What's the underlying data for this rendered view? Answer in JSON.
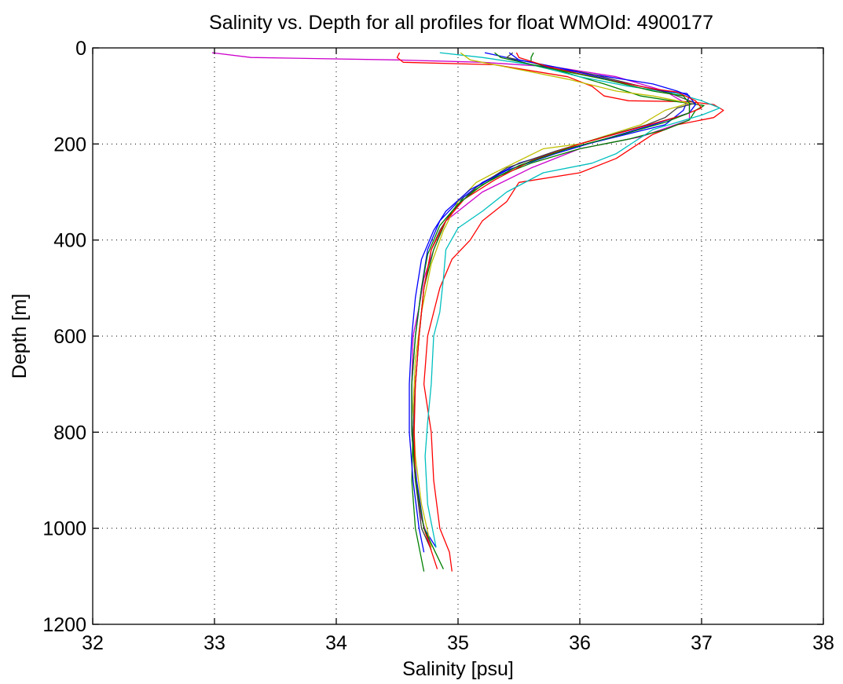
{
  "chart_data": {
    "type": "line",
    "title": "Salinity vs. Depth for all profiles for float WMOId: 4900177",
    "xlabel": "Salinity [psu]",
    "ylabel": "Depth [m]",
    "xlim": [
      32,
      38
    ],
    "ylim": [
      0,
      1200
    ],
    "y_reversed": true,
    "grid": true,
    "x_ticks": [
      "32",
      "33",
      "34",
      "35",
      "36",
      "37",
      "38"
    ],
    "y_ticks": [
      "0",
      "200",
      "400",
      "600",
      "800",
      "1000",
      "1200"
    ],
    "series": [
      {
        "color": "#cc00cc",
        "points": [
          [
            32.98,
            10
          ],
          [
            33.3,
            20
          ],
          [
            34.5,
            25
          ],
          [
            35.2,
            30
          ],
          [
            35.8,
            40
          ],
          [
            36.3,
            60
          ],
          [
            36.7,
            90
          ],
          [
            36.9,
            120
          ],
          [
            36.9,
            150
          ],
          [
            36.5,
            185
          ],
          [
            36.0,
            210
          ],
          [
            35.6,
            250
          ],
          [
            35.2,
            300
          ],
          [
            34.9,
            360
          ],
          [
            34.8,
            420
          ],
          [
            34.72,
            480
          ],
          [
            34.68,
            540
          ],
          [
            34.63,
            600
          ],
          [
            34.62,
            700
          ],
          [
            34.62,
            800
          ],
          [
            34.65,
            900
          ],
          [
            34.7,
            980
          ],
          [
            34.78,
            1040
          ]
        ]
      },
      {
        "color": "#ff0000",
        "points": [
          [
            34.52,
            10
          ],
          [
            34.5,
            20
          ],
          [
            34.55,
            30
          ],
          [
            35.3,
            35
          ],
          [
            35.9,
            60
          ],
          [
            36.1,
            80
          ],
          [
            36.2,
            100
          ],
          [
            36.4,
            110
          ],
          [
            36.9,
            112
          ],
          [
            37.1,
            118
          ],
          [
            37.18,
            130
          ],
          [
            37.1,
            145
          ],
          [
            36.8,
            160
          ],
          [
            36.6,
            180
          ],
          [
            36.3,
            230
          ],
          [
            36.0,
            260
          ],
          [
            35.5,
            280
          ],
          [
            35.4,
            320
          ],
          [
            35.2,
            360
          ],
          [
            35.1,
            400
          ],
          [
            34.95,
            440
          ],
          [
            34.85,
            500
          ],
          [
            34.75,
            600
          ],
          [
            34.72,
            700
          ],
          [
            34.78,
            800
          ],
          [
            34.8,
            900
          ],
          [
            34.85,
            1000
          ],
          [
            34.93,
            1050
          ],
          [
            34.95,
            1090
          ]
        ]
      },
      {
        "color": "#008000",
        "points": [
          [
            35.62,
            10
          ],
          [
            35.6,
            20
          ],
          [
            35.6,
            30
          ],
          [
            35.8,
            45
          ],
          [
            36.0,
            60
          ],
          [
            36.2,
            75
          ],
          [
            36.5,
            100
          ],
          [
            36.8,
            112
          ],
          [
            37.02,
            120
          ],
          [
            36.95,
            130
          ],
          [
            36.9,
            150
          ],
          [
            36.7,
            170
          ],
          [
            36.4,
            190
          ],
          [
            36.0,
            210
          ],
          [
            35.6,
            240
          ],
          [
            35.3,
            270
          ],
          [
            35.05,
            310
          ],
          [
            34.9,
            360
          ],
          [
            34.8,
            420
          ],
          [
            34.72,
            500
          ],
          [
            34.68,
            600
          ],
          [
            34.65,
            700
          ],
          [
            34.63,
            800
          ],
          [
            34.62,
            900
          ],
          [
            34.65,
            1000
          ],
          [
            34.72,
            1090
          ]
        ]
      },
      {
        "color": "#0000ff",
        "points": [
          [
            35.22,
            10
          ],
          [
            35.4,
            20
          ],
          [
            35.6,
            35
          ],
          [
            36.1,
            55
          ],
          [
            36.6,
            75
          ],
          [
            36.8,
            90
          ],
          [
            36.9,
            100
          ],
          [
            36.85,
            130
          ],
          [
            36.7,
            160
          ],
          [
            36.3,
            185
          ],
          [
            35.9,
            210
          ],
          [
            35.5,
            240
          ],
          [
            35.2,
            280
          ],
          [
            35.0,
            320
          ],
          [
            34.85,
            360
          ],
          [
            34.75,
            420
          ],
          [
            34.7,
            500
          ],
          [
            34.65,
            600
          ],
          [
            34.62,
            700
          ],
          [
            34.62,
            800
          ],
          [
            34.66,
            900
          ],
          [
            34.72,
            1000
          ],
          [
            34.82,
            1040
          ]
        ]
      },
      {
        "color": "#00bfbf",
        "points": [
          [
            34.85,
            10
          ],
          [
            35.2,
            20
          ],
          [
            35.6,
            35
          ],
          [
            36.0,
            60
          ],
          [
            36.4,
            80
          ],
          [
            36.8,
            95
          ],
          [
            37.0,
            110
          ],
          [
            37.15,
            125
          ],
          [
            37.0,
            140
          ],
          [
            36.6,
            170
          ],
          [
            36.3,
            220
          ],
          [
            36.1,
            240
          ],
          [
            35.7,
            260
          ],
          [
            35.4,
            300
          ],
          [
            35.2,
            340
          ],
          [
            35.0,
            375
          ],
          [
            34.9,
            420
          ],
          [
            34.88,
            480
          ],
          [
            34.85,
            550
          ],
          [
            34.8,
            600
          ],
          [
            34.78,
            700
          ],
          [
            34.75,
            780
          ],
          [
            34.73,
            850
          ],
          [
            34.75,
            950
          ],
          [
            34.82,
            1040
          ]
        ]
      },
      {
        "color": "#bfbf00",
        "points": [
          [
            35.02,
            10
          ],
          [
            35.1,
            25
          ],
          [
            35.5,
            45
          ],
          [
            35.9,
            65
          ],
          [
            36.3,
            90
          ],
          [
            36.6,
            100
          ],
          [
            36.8,
            110
          ],
          [
            36.9,
            115
          ],
          [
            36.7,
            130
          ],
          [
            36.5,
            160
          ],
          [
            36.0,
            200
          ],
          [
            35.7,
            210
          ],
          [
            35.3,
            260
          ],
          [
            35.15,
            280
          ],
          [
            35.0,
            320
          ],
          [
            34.88,
            380
          ],
          [
            34.78,
            450
          ],
          [
            34.7,
            550
          ],
          [
            34.65,
            650
          ],
          [
            34.63,
            750
          ],
          [
            34.65,
            850
          ],
          [
            34.7,
            950
          ],
          [
            34.78,
            1040
          ]
        ]
      },
      {
        "color": "#404040",
        "points": [
          [
            35.45,
            10
          ],
          [
            35.4,
            20
          ],
          [
            35.7,
            35
          ],
          [
            36.1,
            55
          ],
          [
            36.5,
            80
          ],
          [
            36.75,
            95
          ],
          [
            36.8,
            100
          ],
          [
            36.95,
            115
          ],
          [
            36.8,
            125
          ],
          [
            36.7,
            145
          ],
          [
            36.55,
            160
          ],
          [
            36.2,
            185
          ],
          [
            35.8,
            215
          ],
          [
            35.4,
            250
          ],
          [
            35.15,
            290
          ],
          [
            34.95,
            340
          ],
          [
            34.85,
            380
          ],
          [
            34.78,
            420
          ],
          [
            34.72,
            500
          ],
          [
            34.68,
            600
          ],
          [
            34.65,
            700
          ],
          [
            34.63,
            800
          ],
          [
            34.65,
            900
          ],
          [
            34.7,
            1000
          ],
          [
            34.78,
            1045
          ]
        ]
      },
      {
        "color": "#0000ff",
        "points": [
          [
            35.42,
            10
          ],
          [
            35.5,
            25
          ],
          [
            35.9,
            45
          ],
          [
            36.3,
            70
          ],
          [
            36.7,
            90
          ],
          [
            36.88,
            95
          ],
          [
            36.95,
            118
          ],
          [
            36.9,
            135
          ],
          [
            36.6,
            160
          ],
          [
            36.2,
            190
          ],
          [
            35.8,
            220
          ],
          [
            35.4,
            255
          ],
          [
            35.1,
            295
          ],
          [
            34.9,
            340
          ],
          [
            34.8,
            380
          ],
          [
            34.7,
            440
          ],
          [
            34.65,
            520
          ],
          [
            34.62,
            600
          ],
          [
            34.6,
            700
          ],
          [
            34.6,
            800
          ],
          [
            34.63,
            900
          ],
          [
            34.68,
            1000
          ],
          [
            34.72,
            1050
          ]
        ]
      },
      {
        "color": "#ff0000",
        "points": [
          [
            35.48,
            10
          ],
          [
            35.5,
            20
          ],
          [
            35.75,
            40
          ],
          [
            36.2,
            65
          ],
          [
            36.6,
            85
          ],
          [
            36.8,
            92
          ],
          [
            36.95,
            110
          ],
          [
            37.0,
            125
          ],
          [
            36.85,
            140
          ],
          [
            36.5,
            165
          ],
          [
            36.0,
            200
          ],
          [
            35.6,
            235
          ],
          [
            35.3,
            275
          ],
          [
            35.05,
            315
          ],
          [
            34.9,
            360
          ],
          [
            34.78,
            420
          ],
          [
            34.72,
            500
          ],
          [
            34.68,
            600
          ],
          [
            34.65,
            700
          ],
          [
            34.64,
            800
          ],
          [
            34.65,
            900
          ],
          [
            34.72,
            1000
          ],
          [
            34.83,
            1085
          ]
        ]
      },
      {
        "color": "#008000",
        "points": [
          [
            35.3,
            10
          ],
          [
            35.35,
            20
          ],
          [
            35.7,
            40
          ],
          [
            36.2,
            65
          ],
          [
            36.6,
            90
          ],
          [
            36.85,
            100
          ],
          [
            36.9,
            115
          ],
          [
            36.9,
            135
          ],
          [
            36.7,
            155
          ],
          [
            36.35,
            180
          ],
          [
            35.9,
            210
          ],
          [
            35.5,
            245
          ],
          [
            35.2,
            285
          ],
          [
            35.0,
            325
          ],
          [
            34.85,
            370
          ],
          [
            34.75,
            430
          ],
          [
            34.7,
            500
          ],
          [
            34.65,
            600
          ],
          [
            34.62,
            700
          ],
          [
            34.62,
            800
          ],
          [
            34.65,
            900
          ],
          [
            34.72,
            1000
          ],
          [
            34.88,
            1085
          ]
        ]
      }
    ]
  }
}
